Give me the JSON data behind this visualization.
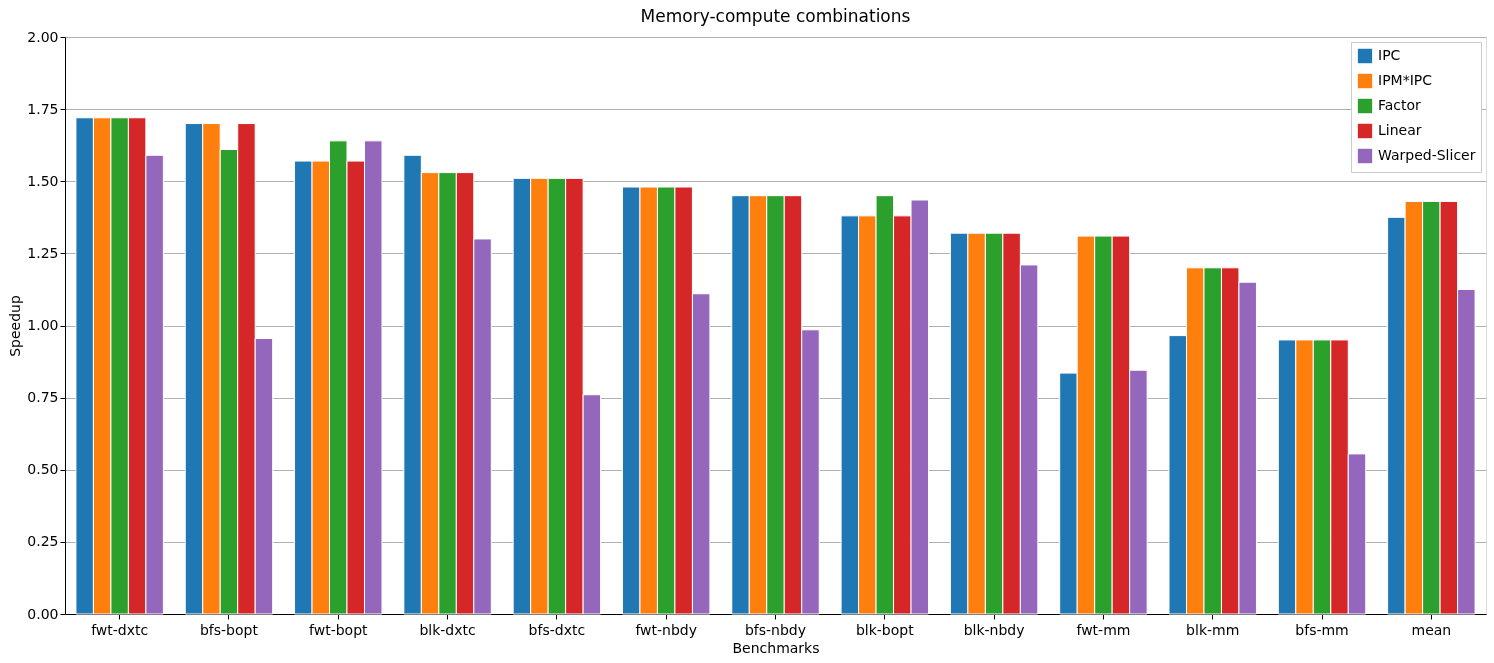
{
  "chart_data": {
    "type": "bar",
    "title": "Memory-compute combinations",
    "xlabel": "Benchmarks",
    "ylabel": "Speedup",
    "categories": [
      "fwt-dxtc",
      "bfs-bopt",
      "fwt-bopt",
      "blk-dxtc",
      "bfs-dxtc",
      "fwt-nbdy",
      "bfs-nbdy",
      "blk-bopt",
      "blk-nbdy",
      "fwt-mm",
      "blk-mm",
      "bfs-mm",
      "mean"
    ],
    "series": [
      {
        "name": "IPC",
        "color": "#1f77b4",
        "values": [
          1.72,
          1.7,
          1.57,
          1.59,
          1.51,
          1.48,
          1.45,
          1.38,
          1.32,
          0.835,
          0.965,
          0.95,
          1.375
        ]
      },
      {
        "name": "IPM*IPC",
        "color": "#ff7f0e",
        "values": [
          1.72,
          1.7,
          1.57,
          1.53,
          1.51,
          1.48,
          1.45,
          1.38,
          1.32,
          1.31,
          1.2,
          0.95,
          1.43
        ]
      },
      {
        "name": "Factor",
        "color": "#2ca02c",
        "values": [
          1.72,
          1.61,
          1.64,
          1.53,
          1.51,
          1.48,
          1.45,
          1.45,
          1.32,
          1.31,
          1.2,
          0.95,
          1.43
        ]
      },
      {
        "name": "Linear",
        "color": "#d62728",
        "values": [
          1.72,
          1.7,
          1.57,
          1.53,
          1.51,
          1.48,
          1.45,
          1.38,
          1.32,
          1.31,
          1.2,
          0.95,
          1.43
        ]
      },
      {
        "name": "Warped-Slicer",
        "color": "#9467bd",
        "values": [
          1.59,
          0.955,
          1.64,
          1.3,
          0.76,
          1.11,
          0.985,
          1.435,
          1.21,
          0.845,
          1.15,
          0.555,
          1.125
        ]
      }
    ],
    "ylim": [
      0,
      2.0
    ],
    "yticks": [
      {
        "value": 0,
        "label": "0.00"
      },
      {
        "value": 0.25,
        "label": "0.25"
      },
      {
        "value": 0.5,
        "label": "0.50"
      },
      {
        "value": 0.75,
        "label": "0.75"
      },
      {
        "value": 1.0,
        "label": "1.00"
      },
      {
        "value": 1.25,
        "label": "1.25"
      },
      {
        "value": 1.5,
        "label": "1.50"
      },
      {
        "value": 1.75,
        "label": "1.75"
      },
      {
        "value": 2.0,
        "label": "2.00"
      }
    ],
    "grid": "y",
    "legend": "top right"
  }
}
